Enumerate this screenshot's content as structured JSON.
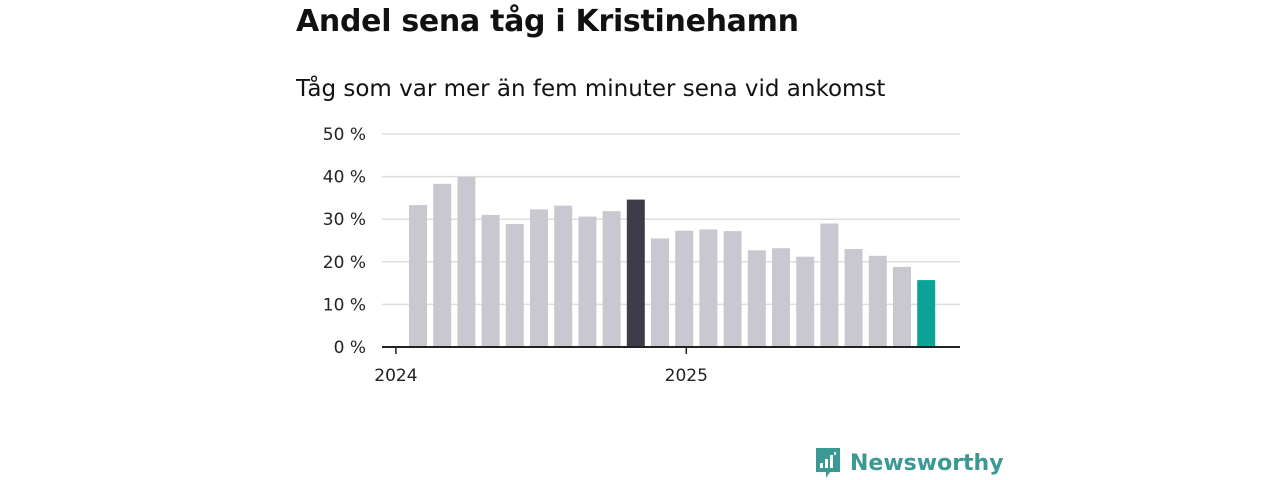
{
  "title": "Andel sena tåg i Kristinehamn",
  "subtitle": "Tåg som var mer än fem minuter sena vid ankomst",
  "brand": {
    "name": "Newsworthy",
    "logo_icon": "newsworthy-logo-icon",
    "color": "#3a9a93"
  },
  "colors": {
    "default_bar": "#c9c8d0",
    "highlight_bar": "#3e3c48",
    "latest_bar": "#0aa396",
    "grid": "#dddddd",
    "axis": "#222222"
  },
  "chart_data": {
    "type": "bar",
    "title": "Andel sena tåg i Kristinehamn",
    "subtitle": "Tåg som var mer än fem minuter sena vid ankomst",
    "xlabel": "",
    "ylabel": "",
    "ylim": [
      0,
      50
    ],
    "yticks": [
      "0 %",
      "10 %",
      "20 %",
      "30 %",
      "40 %",
      "50 %"
    ],
    "ytick_values": [
      0,
      10,
      20,
      30,
      40,
      50
    ],
    "xtick_labels": [
      {
        "label": "2024",
        "before_bar_index": 0
      },
      {
        "label": "2025",
        "before_bar_index": 12
      }
    ],
    "grid": true,
    "series": [
      {
        "values": [
          33.3,
          38.3,
          39.9,
          31.0,
          28.9,
          32.3,
          33.2,
          30.6,
          31.9,
          34.6,
          25.5,
          27.3,
          27.6,
          27.2,
          22.7,
          23.2,
          21.2,
          29.0,
          23.0,
          21.4,
          18.8,
          15.7
        ],
        "highlight_index": 9,
        "latest_index": 21
      }
    ]
  }
}
